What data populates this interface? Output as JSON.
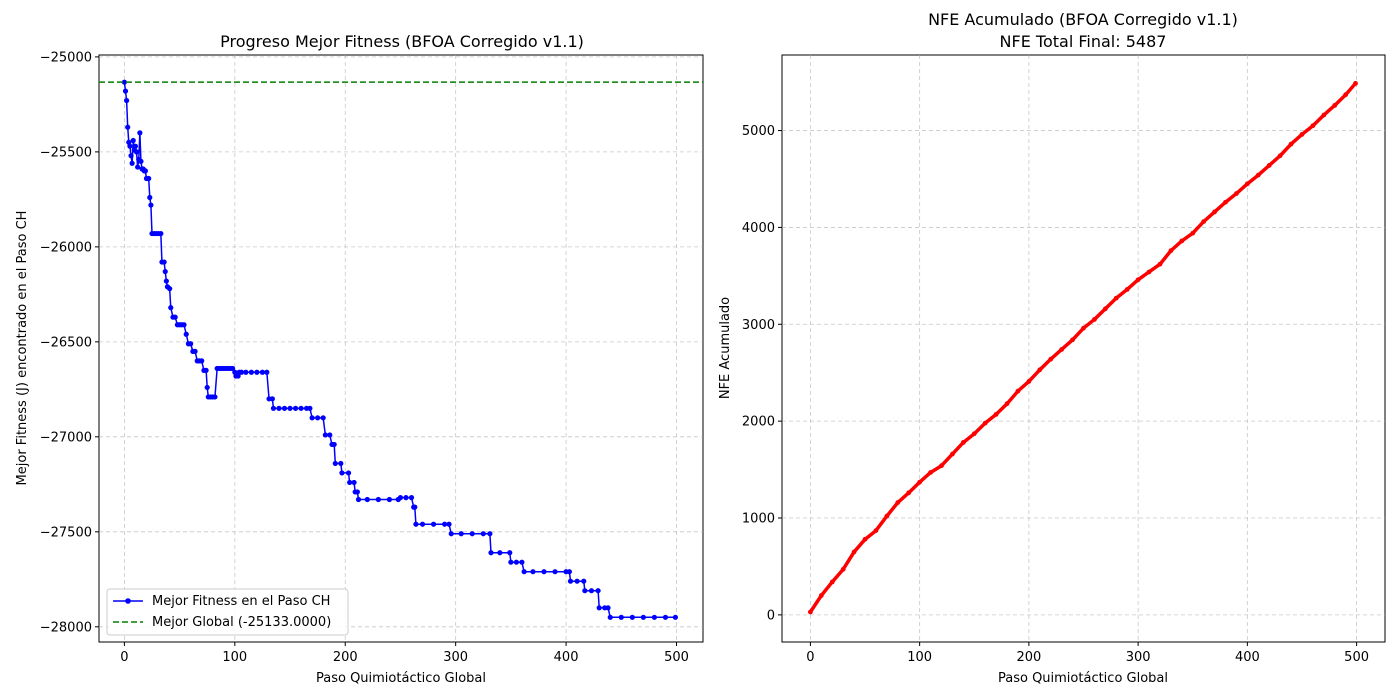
{
  "charts": [
    {
      "type": "line",
      "title": "Progreso Mejor Fitness (BFOA Corregido v1.1)",
      "xlabel": "Paso Quimiotáctico Global",
      "ylabel": "Mejor Fitness (J) encontrado en el Paso CH",
      "xlim": [
        -23,
        524
      ],
      "ylim": [
        -28080,
        -24990
      ],
      "xticks": [
        0,
        100,
        200,
        300,
        400,
        500
      ],
      "yticks": [
        -25000,
        -25500,
        -26000,
        -26500,
        -27000,
        -27500,
        -28000
      ],
      "xtick_labels": [
        "0",
        "100",
        "200",
        "300",
        "400",
        "500"
      ],
      "ytick_labels": [
        "−25000",
        "−25500",
        "−26000",
        "−26500",
        "−27000",
        "−27500",
        "−28000"
      ],
      "grid": true,
      "legend_position": "lower left",
      "legend": [
        "Mejor Fitness en el Paso CH",
        "Mejor Global (-25133.0000)"
      ],
      "series": [
        {
          "name": "Mejor Fitness en el Paso CH",
          "color": "#0000ff",
          "marker": "circle",
          "points": [
            [
              0,
              -25133
            ],
            [
              1,
              -25180
            ],
            [
              2,
              -25230
            ],
            [
              3,
              -25370
            ],
            [
              4,
              -25450
            ],
            [
              5,
              -25470
            ],
            [
              6,
              -25520
            ],
            [
              7,
              -25560
            ],
            [
              8,
              -25440
            ],
            [
              9,
              -25490
            ],
            [
              10,
              -25470
            ],
            [
              11,
              -25500
            ],
            [
              12,
              -25580
            ],
            [
              13,
              -25540
            ],
            [
              14,
              -25400
            ],
            [
              15,
              -25550
            ],
            [
              16,
              -25590
            ],
            [
              17,
              -25590
            ],
            [
              18,
              -25600
            ],
            [
              19,
              -25600
            ],
            [
              20,
              -25640
            ],
            [
              22,
              -25640
            ],
            [
              23,
              -25740
            ],
            [
              24,
              -25780
            ],
            [
              25,
              -25930
            ],
            [
              27,
              -25930
            ],
            [
              29,
              -25930
            ],
            [
              31,
              -25930
            ],
            [
              33,
              -25930
            ],
            [
              34,
              -26080
            ],
            [
              36,
              -26080
            ],
            [
              37,
              -26130
            ],
            [
              38,
              -26180
            ],
            [
              39,
              -26210
            ],
            [
              41,
              -26220
            ],
            [
              42,
              -26320
            ],
            [
              44,
              -26370
            ],
            [
              46,
              -26370
            ],
            [
              48,
              -26410
            ],
            [
              50,
              -26410
            ],
            [
              52,
              -26410
            ],
            [
              54,
              -26410
            ],
            [
              56,
              -26460
            ],
            [
              58,
              -26510
            ],
            [
              60,
              -26510
            ],
            [
              62,
              -26550
            ],
            [
              64,
              -26550
            ],
            [
              66,
              -26600
            ],
            [
              68,
              -26600
            ],
            [
              70,
              -26600
            ],
            [
              72,
              -26650
            ],
            [
              74,
              -26650
            ],
            [
              75,
              -26740
            ],
            [
              76,
              -26790
            ],
            [
              78,
              -26790
            ],
            [
              80,
              -26790
            ],
            [
              82,
              -26790
            ],
            [
              84,
              -26640
            ],
            [
              86,
              -26640
            ],
            [
              88,
              -26640
            ],
            [
              90,
              -26640
            ],
            [
              92,
              -26640
            ],
            [
              94,
              -26640
            ],
            [
              96,
              -26640
            ],
            [
              98,
              -26640
            ],
            [
              100,
              -26660
            ],
            [
              101,
              -26680
            ],
            [
              103,
              -26680
            ],
            [
              104,
              -26660
            ],
            [
              106,
              -26660
            ],
            [
              110,
              -26660
            ],
            [
              115,
              -26660
            ],
            [
              120,
              -26660
            ],
            [
              125,
              -26660
            ],
            [
              129,
              -26660
            ],
            [
              131,
              -26800
            ],
            [
              134,
              -26800
            ],
            [
              135,
              -26850
            ],
            [
              140,
              -26850
            ],
            [
              145,
              -26850
            ],
            [
              150,
              -26850
            ],
            [
              155,
              -26850
            ],
            [
              160,
              -26850
            ],
            [
              165,
              -26850
            ],
            [
              168,
              -26850
            ],
            [
              170,
              -26900
            ],
            [
              175,
              -26900
            ],
            [
              180,
              -26900
            ],
            [
              182,
              -26990
            ],
            [
              186,
              -26990
            ],
            [
              188,
              -27040
            ],
            [
              190,
              -27040
            ],
            [
              191,
              -27140
            ],
            [
              196,
              -27140
            ],
            [
              197,
              -27190
            ],
            [
              203,
              -27190
            ],
            [
              204,
              -27240
            ],
            [
              208,
              -27240
            ],
            [
              209,
              -27290
            ],
            [
              211,
              -27290
            ],
            [
              212,
              -27330
            ],
            [
              220,
              -27330
            ],
            [
              230,
              -27330
            ],
            [
              240,
              -27330
            ],
            [
              248,
              -27330
            ],
            [
              250,
              -27320
            ],
            [
              255,
              -27320
            ],
            [
              260,
              -27320
            ],
            [
              262,
              -27370
            ],
            [
              263,
              -27370
            ],
            [
              264,
              -27460
            ],
            [
              270,
              -27460
            ],
            [
              280,
              -27460
            ],
            [
              290,
              -27460
            ],
            [
              294,
              -27460
            ],
            [
              296,
              -27510
            ],
            [
              305,
              -27510
            ],
            [
              315,
              -27510
            ],
            [
              325,
              -27510
            ],
            [
              331,
              -27510
            ],
            [
              332,
              -27610
            ],
            [
              340,
              -27610
            ],
            [
              349,
              -27610
            ],
            [
              350,
              -27660
            ],
            [
              355,
              -27660
            ],
            [
              360,
              -27660
            ],
            [
              362,
              -27710
            ],
            [
              370,
              -27710
            ],
            [
              380,
              -27710
            ],
            [
              390,
              -27710
            ],
            [
              400,
              -27710
            ],
            [
              403,
              -27710
            ],
            [
              404,
              -27760
            ],
            [
              410,
              -27760
            ],
            [
              416,
              -27760
            ],
            [
              417,
              -27810
            ],
            [
              423,
              -27810
            ],
            [
              429,
              -27810
            ],
            [
              430,
              -27900
            ],
            [
              435,
              -27900
            ],
            [
              438,
              -27900
            ],
            [
              440,
              -27950
            ],
            [
              450,
              -27950
            ],
            [
              460,
              -27950
            ],
            [
              470,
              -27950
            ],
            [
              480,
              -27950
            ],
            [
              490,
              -27950
            ],
            [
              499,
              -27950
            ]
          ]
        },
        {
          "name": "Mejor Global (-25133.0000)",
          "color": "#008000",
          "style": "dashed",
          "y": -25133
        }
      ]
    },
    {
      "type": "line",
      "title": "NFE Acumulado (BFOA Corregido v1.1)",
      "subtitle": "NFE Total Final: 5487",
      "xlabel": "Paso Quimiotáctico Global",
      "ylabel": "NFE Acumulado",
      "xlim": [
        -26,
        526
      ],
      "ylim": [
        -280,
        5780
      ],
      "xticks": [
        0,
        100,
        200,
        300,
        400,
        500
      ],
      "yticks": [
        0,
        1000,
        2000,
        3000,
        4000,
        5000
      ],
      "xtick_labels": [
        "0",
        "100",
        "200",
        "300",
        "400",
        "500"
      ],
      "ytick_labels": [
        "0",
        "1000",
        "2000",
        "3000",
        "4000",
        "5000"
      ],
      "grid": true,
      "series": [
        {
          "color": "#ff0000",
          "marker": "circle",
          "points": [
            [
              0,
              30
            ],
            [
              10,
              200
            ],
            [
              20,
              340
            ],
            [
              30,
              470
            ],
            [
              40,
              650
            ],
            [
              50,
              780
            ],
            [
              60,
              870
            ],
            [
              70,
              1020
            ],
            [
              80,
              1160
            ],
            [
              90,
              1260
            ],
            [
              100,
              1370
            ],
            [
              110,
              1470
            ],
            [
              120,
              1540
            ],
            [
              130,
              1660
            ],
            [
              140,
              1780
            ],
            [
              150,
              1870
            ],
            [
              160,
              1980
            ],
            [
              170,
              2070
            ],
            [
              180,
              2180
            ],
            [
              190,
              2310
            ],
            [
              200,
              2410
            ],
            [
              210,
              2530
            ],
            [
              220,
              2640
            ],
            [
              230,
              2740
            ],
            [
              240,
              2840
            ],
            [
              250,
              2960
            ],
            [
              260,
              3050
            ],
            [
              270,
              3160
            ],
            [
              280,
              3270
            ],
            [
              290,
              3360
            ],
            [
              300,
              3460
            ],
            [
              310,
              3540
            ],
            [
              320,
              3620
            ],
            [
              330,
              3760
            ],
            [
              340,
              3860
            ],
            [
              350,
              3940
            ],
            [
              360,
              4060
            ],
            [
              370,
              4160
            ],
            [
              380,
              4260
            ],
            [
              390,
              4350
            ],
            [
              400,
              4450
            ],
            [
              410,
              4540
            ],
            [
              420,
              4640
            ],
            [
              430,
              4740
            ],
            [
              440,
              4860
            ],
            [
              450,
              4960
            ],
            [
              460,
              5050
            ],
            [
              470,
              5160
            ],
            [
              480,
              5260
            ],
            [
              490,
              5370
            ],
            [
              499,
              5487
            ]
          ]
        }
      ]
    }
  ]
}
